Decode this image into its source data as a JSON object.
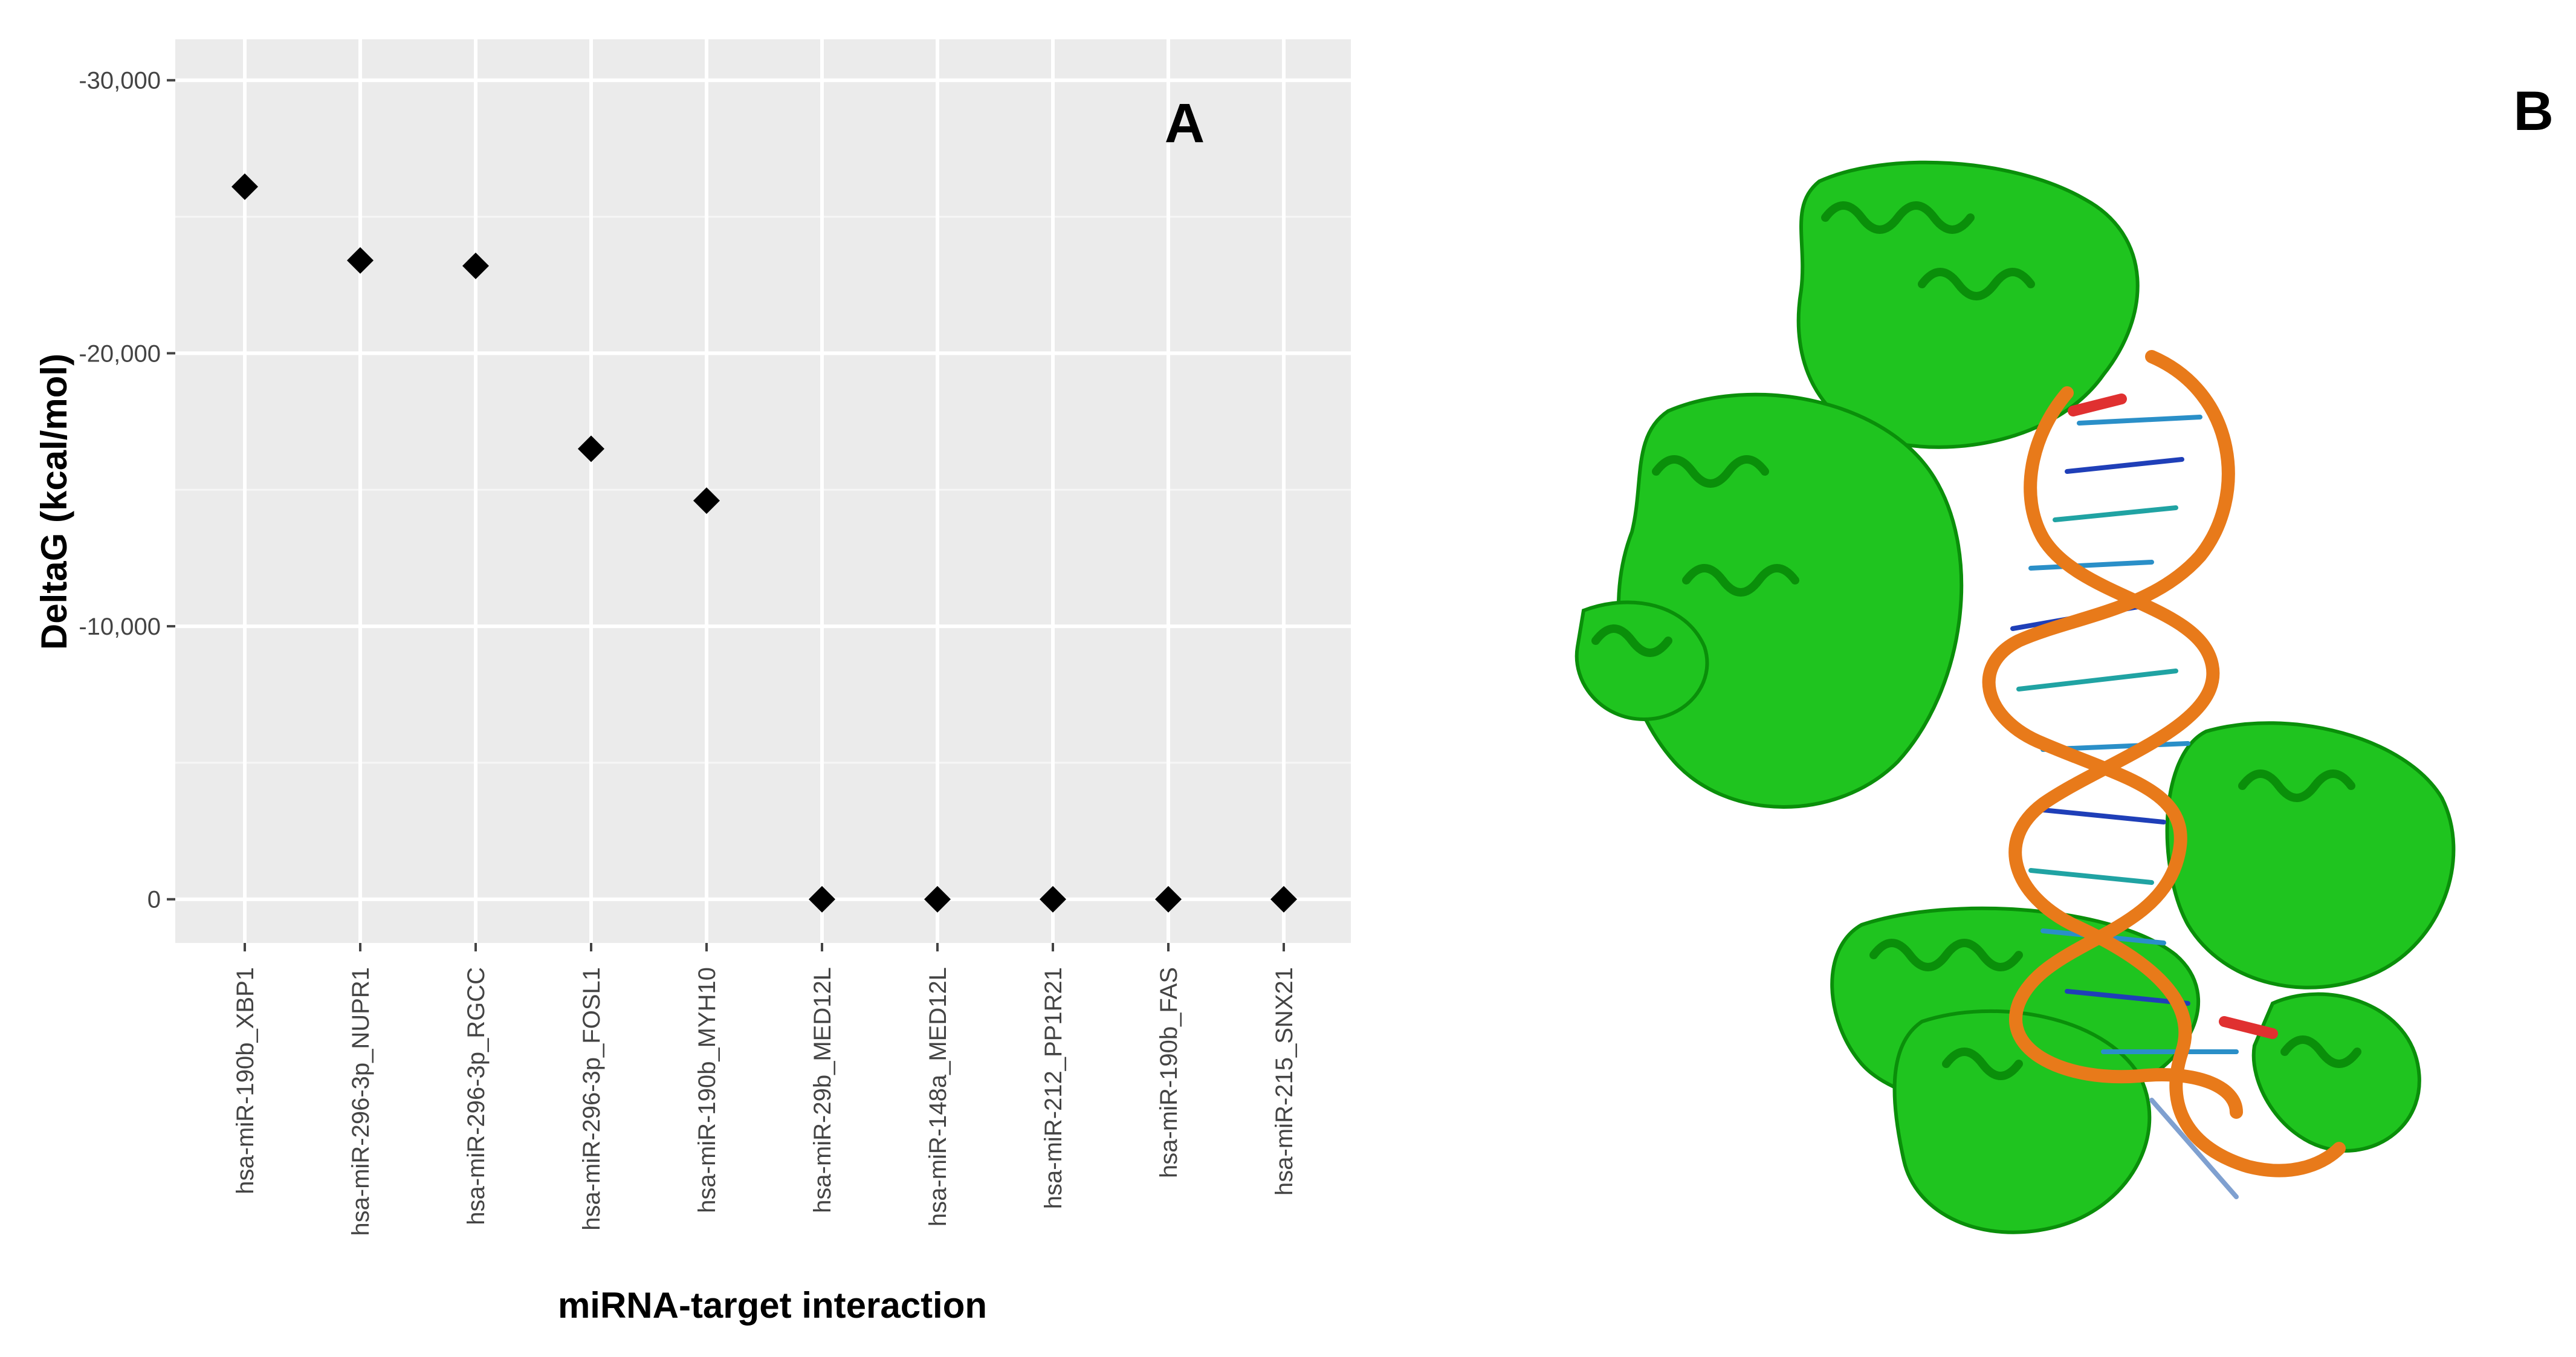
{
  "panels": {
    "a_label": "A",
    "b_label": "B"
  },
  "chart_data": {
    "type": "scatter",
    "title": "",
    "xlabel": "miRNA-target interaction",
    "ylabel": "DeltaG (kcal/mol)",
    "ylim": [
      -31500,
      1600
    ],
    "y_axis_reversed": true,
    "grid": true,
    "background_color": "#ebebeb",
    "marker": "diamond",
    "marker_color": "#000000",
    "y_ticks": [
      {
        "value": -30000,
        "label": "-30,000"
      },
      {
        "value": -20000,
        "label": "-20,000"
      },
      {
        "value": -10000,
        "label": "-10,000"
      },
      {
        "value": 0,
        "label": "0"
      }
    ],
    "categories": [
      "hsa-miR-190b_XBP1",
      "hsa-miR-296-3p_NUPR1",
      "hsa-miR-296-3p_RGCC",
      "hsa-miR-296-3p_FOSL1",
      "hsa-miR-190b_MYH10",
      "hsa-miR-29b_MED12L",
      "hsa-miR-148a_MED12L",
      "hsa-miR-212_PP1R21",
      "hsa-miR-190b_FAS",
      "hsa-miR-215_SNX21"
    ],
    "values": [
      -26100,
      -23400,
      -23200,
      -16500,
      -14600,
      0,
      0,
      0,
      0,
      0
    ]
  },
  "structure_image": {
    "protein_color": "#1fc41f",
    "protein_dark_color": "#0a8f0a",
    "rna_backbone_color": "#e87a1a",
    "base_pair_colors": [
      "#1f3fb8",
      "#2a8fc8",
      "#20a3a3"
    ],
    "highlight_color": "#e03030"
  }
}
